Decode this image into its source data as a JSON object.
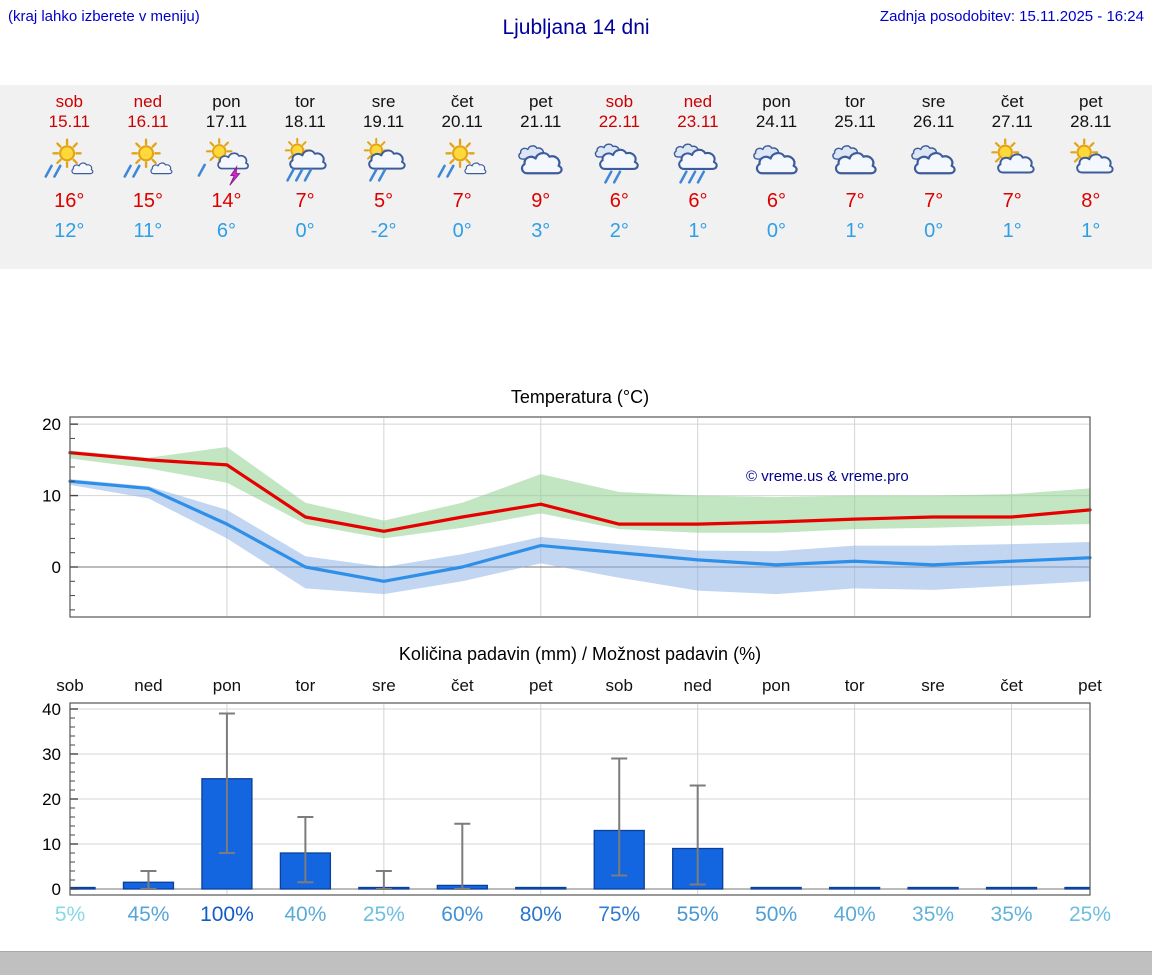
{
  "header": {
    "hint": "(kraj lahko izberete v meniju)",
    "title": "Ljubljana 14 dni",
    "updated": "Zadnja posodobitev: 15.11.2025 - 16:24"
  },
  "colors": {
    "header_blue": "#0000cc",
    "title_blue": "#00009b",
    "weekend_red": "#cc0000",
    "high_temp_red": "#dd0000",
    "low_temp_blue": "#2e9fe6",
    "temp_max_line": "#e60000",
    "temp_min_line": "#2e8fe8",
    "temp_max_band": "#8fd08f",
    "temp_min_band": "#8fb4e8",
    "bar_blue": "#1465e0",
    "prob_low": "#8ce0e8",
    "prob_high": "#125cc6"
  },
  "days": [
    {
      "name": "sob",
      "date": "15.11",
      "weekend": true,
      "icon": "sun-rain",
      "high": "16°",
      "low": "12°"
    },
    {
      "name": "ned",
      "date": "16.11",
      "weekend": true,
      "icon": "sun-rain",
      "high": "15°",
      "low": "11°"
    },
    {
      "name": "pon",
      "date": "17.11",
      "weekend": false,
      "icon": "sun-storm",
      "high": "14°",
      "low": "6°"
    },
    {
      "name": "tor",
      "date": "18.11",
      "weekend": false,
      "icon": "sun-cloud-heavy-rain",
      "high": "7°",
      "low": "0°"
    },
    {
      "name": "sre",
      "date": "19.11",
      "weekend": false,
      "icon": "sun-cloud-rain",
      "high": "5°",
      "low": "-2°"
    },
    {
      "name": "čet",
      "date": "20.11",
      "weekend": false,
      "icon": "sun-rain",
      "high": "7°",
      "low": "0°"
    },
    {
      "name": "pet",
      "date": "21.11",
      "weekend": false,
      "icon": "cloudy",
      "high": "9°",
      "low": "3°"
    },
    {
      "name": "sob",
      "date": "22.11",
      "weekend": true,
      "icon": "cloud-rain",
      "high": "6°",
      "low": "2°"
    },
    {
      "name": "ned",
      "date": "23.11",
      "weekend": true,
      "icon": "cloud-heavy-rain",
      "high": "6°",
      "low": "1°"
    },
    {
      "name": "pon",
      "date": "24.11",
      "weekend": false,
      "icon": "cloudy",
      "high": "6°",
      "low": "0°"
    },
    {
      "name": "tor",
      "date": "25.11",
      "weekend": false,
      "icon": "cloudy",
      "high": "7°",
      "low": "1°"
    },
    {
      "name": "sre",
      "date": "26.11",
      "weekend": false,
      "icon": "cloudy",
      "high": "7°",
      "low": "0°"
    },
    {
      "name": "čet",
      "date": "27.11",
      "weekend": false,
      "icon": "sun-cloud",
      "high": "7°",
      "low": "1°"
    },
    {
      "name": "pet",
      "date": "28.11",
      "weekend": false,
      "icon": "sun-cloud",
      "high": "8°",
      "low": "1°"
    }
  ],
  "chart_data": [
    {
      "type": "line",
      "title": "Temperatura (°C)",
      "annotation": "© vreme.us & vreme.pro",
      "categories": [
        "sob 15.11",
        "ned 16.11",
        "pon 17.11",
        "tor 18.11",
        "sre 19.11",
        "čet 20.11",
        "pet 21.11",
        "sob 22.11",
        "ned 23.11",
        "pon 24.11",
        "tor 25.11",
        "sre 26.11",
        "čet 27.11",
        "pet 28.11"
      ],
      "ylim": [
        -7,
        21
      ],
      "yticks": [
        0,
        10,
        20
      ],
      "grid": true,
      "series": [
        {
          "name": "max-temp",
          "type": "line",
          "color": "#e60000",
          "values": [
            16,
            15,
            14.3,
            7,
            5,
            7,
            8.8,
            6,
            6,
            6.3,
            6.7,
            7,
            7,
            8
          ]
        },
        {
          "name": "min-temp",
          "type": "line",
          "color": "#2e8fe8",
          "values": [
            12,
            11,
            6,
            0,
            -2,
            0,
            3,
            2,
            1,
            0.3,
            0.8,
            0.3,
            0.8,
            1.3
          ]
        },
        {
          "name": "max-temp-range",
          "type": "band",
          "color": "#8fd08f",
          "upper": [
            16.3,
            15.3,
            16.8,
            9,
            6.5,
            9,
            13,
            10.5,
            10,
            9.8,
            10,
            10,
            10.2,
            11
          ],
          "lower": [
            15.2,
            13.8,
            11.8,
            6,
            4,
            5.5,
            7.5,
            5.3,
            4.8,
            4.8,
            5.3,
            5.5,
            5.8,
            6
          ]
        },
        {
          "name": "min-temp-range",
          "type": "band",
          "color": "#8fb4e8",
          "upper": [
            12.3,
            11.3,
            8,
            1.5,
            0,
            1.8,
            4.2,
            3.2,
            2.3,
            2.2,
            3,
            3,
            3.2,
            3.5
          ],
          "lower": [
            11.5,
            9.6,
            4,
            -3,
            -3.8,
            -2,
            0.5,
            -1.5,
            -3.3,
            -3.8,
            -3,
            -3.2,
            -2.6,
            -2
          ]
        }
      ]
    },
    {
      "type": "bar",
      "title": "Količina padavin (mm) / Možnost padavin (%)",
      "categories": [
        "sob",
        "ned",
        "pon",
        "tor",
        "sre",
        "čet",
        "pet",
        "sob",
        "ned",
        "pon",
        "tor",
        "sre",
        "čet",
        "pet"
      ],
      "ylim": [
        -1.3,
        41.3
      ],
      "yticks": [
        0,
        10,
        20,
        30,
        40
      ],
      "grid": true,
      "values": [
        0.2,
        1.5,
        24.5,
        8,
        0.3,
        0.8,
        0.1,
        13,
        9,
        0.1,
        0.1,
        0.2,
        0.2,
        0.1
      ],
      "whisker_low": [
        null,
        0,
        8,
        1.5,
        0,
        0,
        null,
        3,
        1,
        null,
        null,
        null,
        null,
        null
      ],
      "whisker_high": [
        null,
        4,
        39,
        16,
        4,
        14.5,
        null,
        29,
        23,
        null,
        null,
        null,
        null,
        null
      ],
      "probabilities": [
        "5%",
        "45%",
        "100%",
        "40%",
        "25%",
        "60%",
        "80%",
        "75%",
        "55%",
        "50%",
        "40%",
        "35%",
        "35%",
        "25%"
      ]
    }
  ]
}
